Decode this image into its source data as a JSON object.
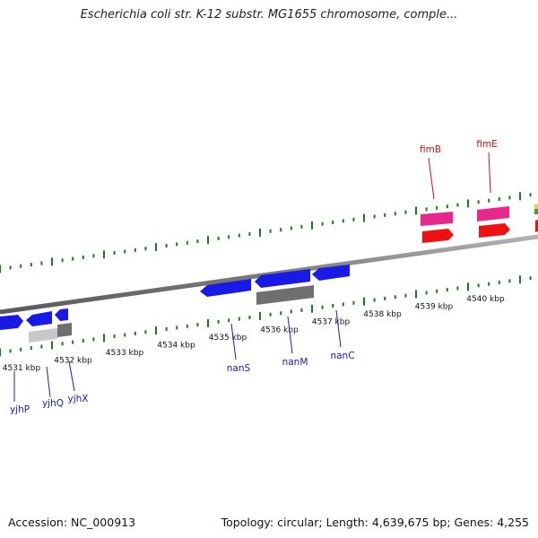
{
  "title": "Escherichia coli str. K-12 substr. MG1655 chromosome, comple...",
  "footer": {
    "accession": "Accession: NC_000913",
    "topology": "Topology: circular; Length: 4,639,675 bp; Genes: 4,255"
  },
  "colors": {
    "forward_gene": "#1a1ae6",
    "non_coding_gray": "#6f6f6f",
    "light_gray": "#c8c8c8",
    "pink_gene": "#e8268c",
    "red_gene": "#ee1111",
    "tick_green": "#1a7a1a",
    "label_blue": "#1a1aa8",
    "label_red": "#c81414",
    "backbone": "#808080"
  },
  "scale": {
    "unit": "kbp",
    "labels": [
      "4531 kbp",
      "4532 kbp",
      "4533 kbp",
      "4534 kbp",
      "4535 kbp",
      "4536 kbp",
      "4537 kbp",
      "4538 kbp",
      "4539 kbp",
      "4540 kbp"
    ]
  },
  "genes": [
    {
      "name": "yjhP",
      "color": "blue"
    },
    {
      "name": "yjhQ",
      "color": "blue"
    },
    {
      "name": "yjhX",
      "color": "blue"
    },
    {
      "name": "nanS",
      "color": "blue"
    },
    {
      "name": "nanM",
      "color": "blue"
    },
    {
      "name": "nanC",
      "color": "blue"
    },
    {
      "name": "fimB",
      "color": "red"
    },
    {
      "name": "fimE",
      "color": "red"
    }
  ]
}
